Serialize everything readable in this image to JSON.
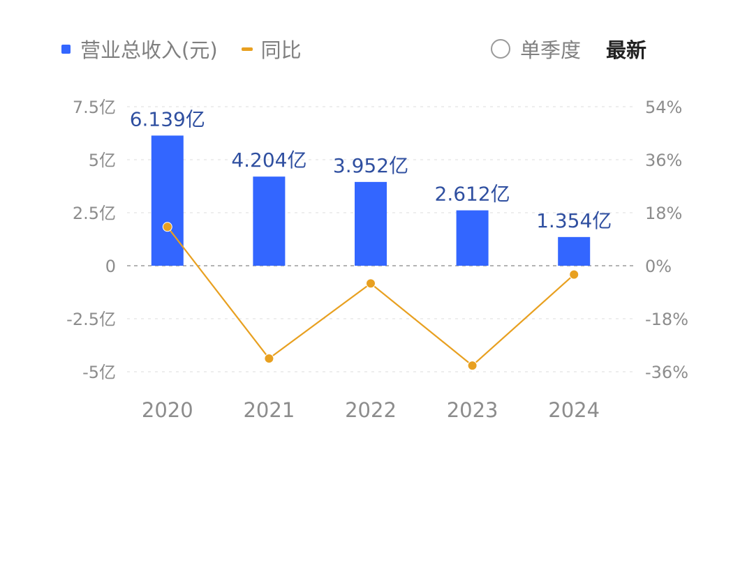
{
  "legend": {
    "bar_label": "营业总收入(元)",
    "line_label": "同比"
  },
  "controls": {
    "single_quarter_label": "单季度",
    "latest_label": "最新"
  },
  "colors": {
    "bar": "#3366ff",
    "line": "#e8a020",
    "data_label": "#2f4fa0",
    "axis_text": "#8c8c8c",
    "grid": "#e3e3e3"
  },
  "chart_data": {
    "type": "bar",
    "title": "",
    "categories": [
      "2020",
      "2021",
      "2022",
      "2023",
      "2024"
    ],
    "series": [
      {
        "name": "营业总收入(元)",
        "type": "bar",
        "axis": "left",
        "values": [
          6.139,
          4.204,
          3.952,
          2.612,
          1.354
        ],
        "labels": [
          "6.139亿",
          "4.204亿",
          "3.952亿",
          "2.612亿",
          "1.354亿"
        ]
      },
      {
        "name": "同比",
        "type": "line",
        "axis": "right",
        "values": [
          13.2,
          -31.5,
          -6.0,
          -33.9,
          -3.0
        ]
      }
    ],
    "y_left": {
      "ylim": [
        -5,
        7.5
      ],
      "ticks": [
        7.5,
        5,
        2.5,
        0,
        -2.5,
        -5
      ],
      "tick_labels": [
        "7.5亿",
        "5亿",
        "2.5亿",
        "0",
        "-2.5亿",
        "-5亿"
      ]
    },
    "y_right": {
      "ylim": [
        -36,
        54
      ],
      "tick_labels": [
        "54%",
        "36%",
        "18%",
        "0%",
        "-18%",
        "-36%"
      ]
    },
    "grid": true,
    "legend_position": "top-left"
  }
}
